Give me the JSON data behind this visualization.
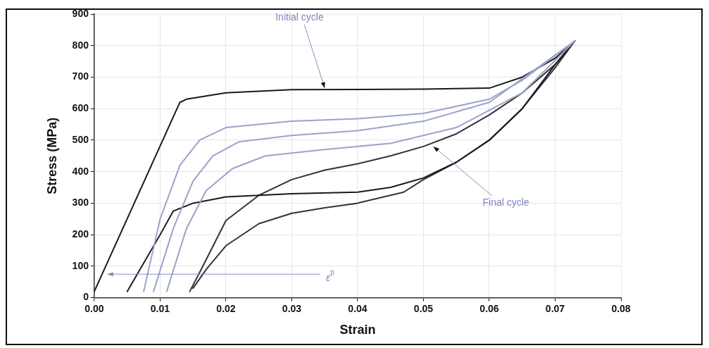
{
  "chart_data": {
    "type": "line",
    "xlabel": "Strain",
    "ylabel": "Stress (MPa)",
    "xlim": [
      0,
      0.08
    ],
    "ylim": [
      0,
      900
    ],
    "xticks": [
      {
        "value": 0,
        "label": "0.00"
      },
      {
        "value": 0.01,
        "label": "0.01"
      },
      {
        "value": 0.02,
        "label": "0.02"
      },
      {
        "value": 0.03,
        "label": "0.03"
      },
      {
        "value": 0.04,
        "label": "0.04"
      },
      {
        "value": 0.05,
        "label": "0.05"
      },
      {
        "value": 0.06,
        "label": "0.06"
      },
      {
        "value": 0.07,
        "label": "0.07"
      },
      {
        "value": 0.08,
        "label": "0.08"
      }
    ],
    "yticks": [
      0,
      100,
      200,
      300,
      400,
      500,
      600,
      700,
      800,
      900
    ],
    "grid": true,
    "legend": false,
    "marker": "none",
    "line_style": "solid",
    "series": [
      {
        "color": "#9aa3c8",
        "x": [
          0.0075,
          0.01,
          0.013,
          0.016,
          0.02,
          0.03,
          0.04,
          0.05,
          0.06,
          0.065,
          0.073
        ],
        "values": [
          20,
          250,
          420,
          500,
          540,
          560,
          568,
          585,
          630,
          690,
          815
        ]
      },
      {
        "color": "#9aa3c8",
        "x": [
          0.009,
          0.012,
          0.015,
          0.018,
          0.022,
          0.03,
          0.04,
          0.05,
          0.06,
          0.073
        ],
        "values": [
          20,
          220,
          370,
          450,
          495,
          515,
          530,
          560,
          620,
          815
        ]
      },
      {
        "color": "#9aa3c8",
        "x": [
          0.011,
          0.014,
          0.017,
          0.021,
          0.026,
          0.035,
          0.045,
          0.055,
          0.065,
          0.073
        ],
        "values": [
          20,
          220,
          340,
          410,
          450,
          470,
          490,
          540,
          650,
          815
        ]
      },
      {
        "color": "#1a1a1a",
        "x": [
          0.0,
          0.013,
          0.014,
          0.02,
          0.03,
          0.05,
          0.06,
          0.065,
          0.07,
          0.073,
          0.07,
          0.065,
          0.06,
          0.055,
          0.05,
          0.045,
          0.04,
          0.03,
          0.02,
          0.015,
          0.012,
          0.01,
          0.005
        ],
        "values": [
          20,
          620,
          630,
          650,
          660,
          662,
          665,
          700,
          760,
          815,
          740,
          600,
          500,
          430,
          380,
          350,
          335,
          330,
          320,
          300,
          275,
          200,
          20
        ]
      },
      {
        "color": "#333333",
        "x": [
          0.0145,
          0.016,
          0.02,
          0.025,
          0.03,
          0.035,
          0.04,
          0.045,
          0.05,
          0.055,
          0.06,
          0.065,
          0.07,
          0.073,
          0.07,
          0.065,
          0.06,
          0.055,
          0.05,
          0.047,
          0.04,
          0.035,
          0.03,
          0.025,
          0.02,
          0.017,
          0.015
        ],
        "values": [
          20,
          80,
          245,
          325,
          375,
          405,
          425,
          450,
          480,
          520,
          580,
          650,
          740,
          815,
          730,
          600,
          500,
          430,
          375,
          335,
          300,
          285,
          268,
          235,
          165,
          90,
          30
        ]
      }
    ],
    "annotations": [
      {
        "text": "Initial cycle",
        "x": 0.035,
        "y": 665
      },
      {
        "text": "Final cycle",
        "x": 0.0515,
        "y": 480
      },
      "ε$^{p}$"
    ]
  }
}
